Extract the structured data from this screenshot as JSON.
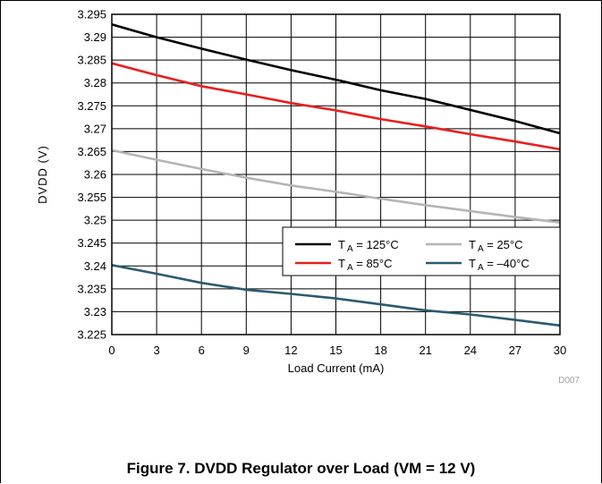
{
  "figure_caption": "Figure 7. DVDD Regulator over Load (VM = 12 V)",
  "figure_id": "D007",
  "chart_data": {
    "type": "line",
    "title": "",
    "xlabel": "Load Current  (mA)",
    "ylabel": "DVDD  (V)",
    "xlim": [
      0,
      30
    ],
    "ylim": [
      3.225,
      3.295
    ],
    "x_ticks": [
      "0",
      "3",
      "6",
      "9",
      "12",
      "15",
      "18",
      "21",
      "24",
      "27",
      "30"
    ],
    "y_ticks": [
      "3.225",
      "3.23",
      "3.235",
      "3.24",
      "3.245",
      "3.25",
      "3.255",
      "3.26",
      "3.265",
      "3.27",
      "3.275",
      "3.28",
      "3.285",
      "3.29",
      "3.295"
    ],
    "x_tick_values": [
      0,
      3,
      6,
      9,
      12,
      15,
      18,
      21,
      24,
      27,
      30
    ],
    "y_tick_values": [
      3.225,
      3.23,
      3.235,
      3.24,
      3.245,
      3.25,
      3.255,
      3.26,
      3.265,
      3.27,
      3.275,
      3.28,
      3.285,
      3.29,
      3.295
    ],
    "grid": true,
    "legend_position": "lower-right",
    "x": [
      0,
      3,
      6,
      9,
      12,
      15,
      18,
      21,
      24,
      27,
      30
    ],
    "series": [
      {
        "name": "T_A = 125°C",
        "legend_main": "T",
        "legend_sub": "A",
        "legend_rest": " = 125°C",
        "color": "#000000",
        "values": [
          3.2928,
          3.29,
          3.2875,
          3.2851,
          3.2828,
          3.2807,
          3.2784,
          3.2765,
          3.2741,
          3.2717,
          3.269
        ]
      },
      {
        "name": "T_A = 25°C",
        "legend_main": "T",
        "legend_sub": "A",
        "legend_rest": " = 25°C",
        "color": "#b4b4b4",
        "values": [
          3.2653,
          3.2632,
          3.2612,
          3.2593,
          3.2576,
          3.2562,
          3.2547,
          3.2533,
          3.252,
          3.2507,
          3.2495
        ]
      },
      {
        "name": "T_A = 85°C",
        "legend_main": "T",
        "legend_sub": "A",
        "legend_rest": " = 85°C",
        "color": "#e8201e",
        "values": [
          3.2843,
          3.2817,
          3.2793,
          3.2775,
          3.2756,
          3.274,
          3.2721,
          3.2705,
          3.2688,
          3.2672,
          3.2655
        ]
      },
      {
        "name": "T_A = -40°C",
        "legend_main": "T",
        "legend_sub": "A",
        "legend_rest": " = –40°C",
        "color": "#2c5a72",
        "values": [
          3.2402,
          3.2383,
          3.2363,
          3.2348,
          3.2339,
          3.2329,
          3.2316,
          3.2303,
          3.2294,
          3.2282,
          3.227
        ]
      }
    ]
  }
}
